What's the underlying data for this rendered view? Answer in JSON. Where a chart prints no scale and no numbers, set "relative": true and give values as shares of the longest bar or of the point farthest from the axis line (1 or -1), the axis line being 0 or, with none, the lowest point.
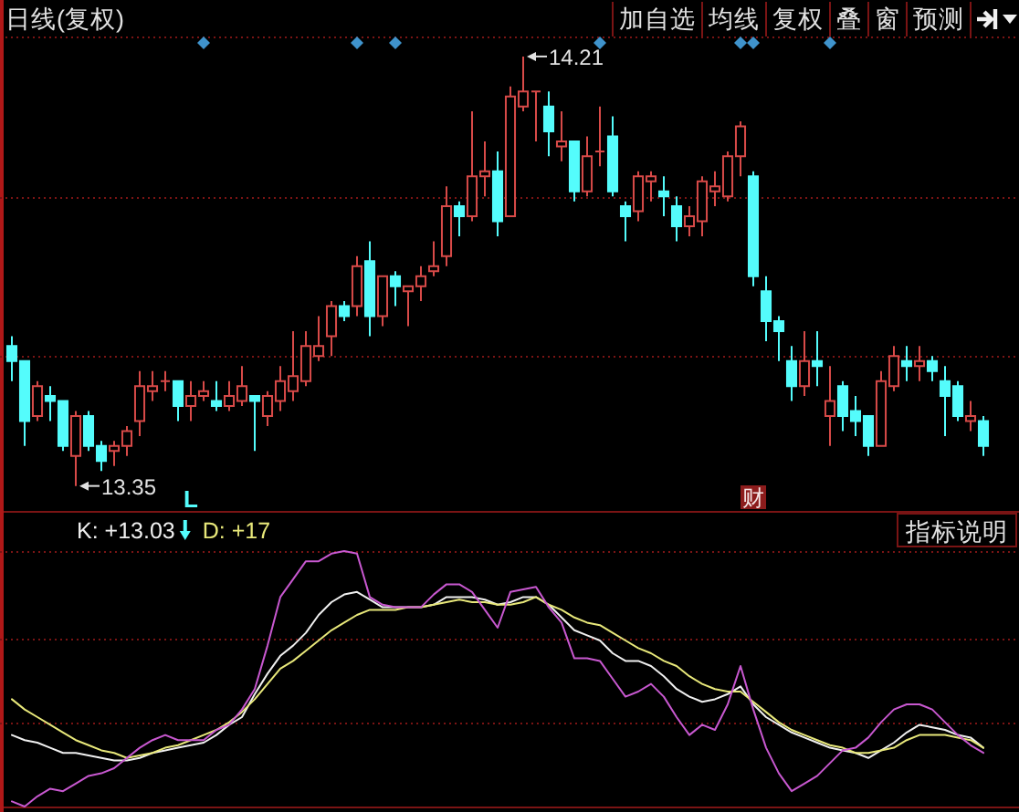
{
  "chart_data": [
    {
      "type": "candlestick",
      "title": "日线(复权)",
      "categories": [
        null,
        null,
        null,
        null,
        null,
        null,
        null,
        null,
        null,
        null,
        null,
        null,
        null,
        null,
        null,
        null,
        null,
        null,
        null,
        null,
        null,
        null,
        null,
        null,
        null,
        null,
        null,
        null,
        null,
        null,
        null,
        null,
        null,
        null,
        null,
        null,
        null,
        null,
        null,
        null,
        null,
        null,
        null,
        null,
        null,
        null,
        null,
        null,
        null,
        null,
        null,
        null,
        null,
        null,
        null,
        null,
        null,
        null,
        null,
        null,
        null,
        null,
        null,
        null,
        null,
        null,
        null,
        null,
        null,
        null,
        null,
        null,
        null,
        null,
        null,
        null,
        null
      ],
      "ohlc": [
        [
          13.63,
          13.65,
          13.56,
          13.6
        ],
        [
          13.6,
          13.6,
          13.43,
          13.48
        ],
        [
          13.49,
          13.56,
          13.48,
          13.55
        ],
        [
          13.53,
          13.55,
          13.48,
          13.52
        ],
        [
          13.52,
          13.52,
          13.42,
          13.43
        ],
        [
          13.41,
          13.5,
          13.35,
          13.49
        ],
        [
          13.49,
          13.5,
          13.42,
          13.43
        ],
        [
          13.43,
          13.44,
          13.38,
          13.4
        ],
        [
          13.42,
          13.44,
          13.39,
          13.43
        ],
        [
          13.43,
          13.47,
          13.41,
          13.46
        ],
        [
          13.48,
          13.58,
          13.45,
          13.55
        ],
        [
          13.54,
          13.58,
          13.52,
          13.55
        ],
        [
          13.56,
          13.58,
          13.54,
          13.56
        ],
        [
          13.56,
          13.56,
          13.48,
          13.51
        ],
        [
          13.51,
          13.56,
          13.48,
          13.53
        ],
        [
          13.53,
          13.56,
          13.52,
          13.54
        ],
        [
          13.52,
          13.56,
          13.5,
          13.51
        ],
        [
          13.51,
          13.56,
          13.5,
          13.53
        ],
        [
          13.52,
          13.59,
          13.51,
          13.55
        ],
        [
          13.53,
          13.53,
          13.42,
          13.52
        ],
        [
          13.49,
          13.54,
          13.47,
          13.53
        ],
        [
          13.52,
          13.59,
          13.5,
          13.56
        ],
        [
          13.54,
          13.66,
          13.52,
          13.57
        ],
        [
          13.56,
          13.66,
          13.55,
          13.63
        ],
        [
          13.61,
          13.69,
          13.6,
          13.63
        ],
        [
          13.65,
          13.72,
          13.61,
          13.71
        ],
        [
          13.71,
          13.72,
          13.68,
          13.69
        ],
        [
          13.71,
          13.81,
          13.69,
          13.79
        ],
        [
          13.8,
          13.84,
          13.65,
          13.69
        ],
        [
          13.69,
          13.77,
          13.67,
          13.77
        ],
        [
          13.77,
          13.78,
          13.71,
          13.75
        ],
        [
          13.74,
          13.75,
          13.67,
          13.75
        ],
        [
          13.75,
          13.79,
          13.72,
          13.77
        ],
        [
          13.78,
          13.84,
          13.77,
          13.79
        ],
        [
          13.81,
          13.95,
          13.79,
          13.91
        ],
        [
          13.91,
          13.92,
          13.85,
          13.89
        ],
        [
          13.89,
          14.1,
          13.88,
          13.97
        ],
        [
          13.97,
          14.04,
          13.93,
          13.98
        ],
        [
          13.98,
          14.02,
          13.85,
          13.88
        ],
        [
          13.89,
          14.15,
          13.89,
          14.13
        ],
        [
          14.11,
          14.21,
          14.1,
          14.14
        ],
        [
          14.14,
          14.14,
          14.04,
          14.14
        ],
        [
          14.11,
          14.14,
          14.01,
          14.06
        ],
        [
          14.03,
          14.1,
          14.0,
          14.04
        ],
        [
          14.04,
          14.04,
          13.92,
          13.94
        ],
        [
          13.94,
          14.05,
          13.93,
          14.01
        ],
        [
          14.02,
          14.11,
          13.99,
          14.02
        ],
        [
          14.05,
          14.09,
          13.93,
          13.94
        ],
        [
          13.91,
          13.92,
          13.84,
          13.89
        ],
        [
          13.9,
          13.98,
          13.88,
          13.97
        ],
        [
          13.96,
          13.98,
          13.92,
          13.97
        ],
        [
          13.94,
          13.97,
          13.89,
          13.93
        ],
        [
          13.91,
          13.93,
          13.84,
          13.87
        ],
        [
          13.87,
          13.91,
          13.85,
          13.89
        ],
        [
          13.88,
          13.97,
          13.85,
          13.96
        ],
        [
          13.94,
          13.98,
          13.91,
          13.95
        ],
        [
          13.93,
          14.02,
          13.92,
          14.01
        ],
        [
          14.01,
          14.08,
          13.97,
          14.07
        ],
        [
          13.97,
          13.98,
          13.75,
          13.77
        ],
        [
          13.74,
          13.77,
          13.64,
          13.68
        ],
        [
          13.68,
          13.69,
          13.6,
          13.66
        ],
        [
          13.6,
          13.63,
          13.52,
          13.55
        ],
        [
          13.55,
          13.66,
          13.53,
          13.6
        ],
        [
          13.6,
          13.66,
          13.55,
          13.59
        ],
        [
          13.49,
          13.59,
          13.43,
          13.52
        ],
        [
          13.55,
          13.56,
          13.46,
          13.49
        ],
        [
          13.5,
          13.53,
          13.45,
          13.48
        ],
        [
          13.49,
          13.49,
          13.41,
          13.43
        ],
        [
          13.43,
          13.58,
          13.43,
          13.56
        ],
        [
          13.55,
          13.63,
          13.54,
          13.61
        ],
        [
          13.6,
          13.63,
          13.56,
          13.59
        ],
        [
          13.59,
          13.63,
          13.56,
          13.6
        ],
        [
          13.6,
          13.61,
          13.56,
          13.58
        ],
        [
          13.56,
          13.59,
          13.45,
          13.53
        ],
        [
          13.55,
          13.56,
          13.48,
          13.49
        ],
        [
          13.48,
          13.52,
          13.46,
          13.49
        ],
        [
          13.48,
          13.49,
          13.41,
          13.43
        ]
      ],
      "colors": [
        "#54fcfc",
        "#54fcfc",
        "#d84a48",
        "#54fcfc",
        "#54fcfc",
        "#d84a48",
        "#54fcfc",
        "#54fcfc",
        "#d84a48",
        "#d84a48",
        "#d84a48",
        "#d84a48",
        "#d84a48",
        "#54fcfc",
        "#d84a48",
        "#d84a48",
        "#54fcfc",
        "#d84a48",
        "#d84a48",
        "#54fcfc",
        "#d84a48",
        "#d84a48",
        "#d84a48",
        "#d84a48",
        "#d84a48",
        "#d84a48",
        "#54fcfc",
        "#d84a48",
        "#54fcfc",
        "#d84a48",
        "#54fcfc",
        "#d84a48",
        "#d84a48",
        "#d84a48",
        "#d84a48",
        "#54fcfc",
        "#d84a48",
        "#d84a48",
        "#54fcfc",
        "#d84a48",
        "#d84a48",
        "#d84a48",
        "#54fcfc",
        "#d84a48",
        "#54fcfc",
        "#d84a48",
        "#d84a48",
        "#54fcfc",
        "#54fcfc",
        "#d84a48",
        "#d84a48",
        "#54fcfc",
        "#54fcfc",
        "#d84a48",
        "#d84a48",
        "#d84a48",
        "#d84a48",
        "#d84a48",
        "#54fcfc",
        "#54fcfc",
        "#54fcfc",
        "#54fcfc",
        "#d84a48",
        "#54fcfc",
        "#d84a48",
        "#54fcfc",
        "#54fcfc",
        "#54fcfc",
        "#d84a48",
        "#d84a48",
        "#54fcfc",
        "#d84a48",
        "#54fcfc",
        "#54fcfc",
        "#54fcfc",
        "#d84a48",
        "#54fcfc"
      ],
      "ylim": [
        13.3,
        14.25
      ],
      "yticks": [
        {
          "value": 13.61,
          "label": null
        },
        {
          "value": 13.93,
          "label": null
        }
      ],
      "grid": "y",
      "annotations": [
        "14.21",
        "13.35",
        "L",
        "财",
        "加自选",
        "均线",
        "复权",
        "叠",
        "窗",
        "预测"
      ]
    },
    {
      "type": "line",
      "relative": true,
      "legend": "top left",
      "categories": [
        null,
        null,
        null,
        null,
        null,
        null,
        null,
        null,
        null,
        null,
        null,
        null,
        null,
        null,
        null,
        null,
        null,
        null,
        null,
        null,
        null,
        null,
        null,
        null,
        null,
        null,
        null,
        null,
        null,
        null,
        null,
        null,
        null,
        null,
        null,
        null,
        null,
        null,
        null,
        null,
        null,
        null,
        null,
        null,
        null,
        null,
        null,
        null,
        null,
        null,
        null,
        null,
        null,
        null,
        null,
        null,
        null,
        null,
        null,
        null,
        null,
        null,
        null,
        null,
        null,
        null,
        null,
        null,
        null,
        null,
        null,
        null,
        null,
        null,
        null,
        null,
        null
      ],
      "series": [
        {
          "name": "K: +13.03",
          "color": "#f0f0f0",
          "values": [
            0.28,
            0.26,
            0.25,
            0.23,
            0.21,
            0.21,
            0.2,
            0.19,
            0.18,
            0.18,
            0.19,
            0.21,
            0.22,
            0.23,
            0.24,
            0.25,
            0.28,
            0.32,
            0.35,
            0.44,
            0.52,
            0.59,
            0.63,
            0.68,
            0.75,
            0.8,
            0.83,
            0.84,
            0.81,
            0.78,
            0.78,
            0.78,
            0.78,
            0.79,
            0.82,
            0.82,
            0.82,
            0.81,
            0.79,
            0.8,
            0.82,
            0.82,
            0.79,
            0.74,
            0.69,
            0.67,
            0.65,
            0.6,
            0.57,
            0.57,
            0.55,
            0.51,
            0.46,
            0.43,
            0.41,
            0.42,
            0.44,
            0.47,
            0.4,
            0.35,
            0.32,
            0.29,
            0.27,
            0.25,
            0.23,
            0.22,
            0.21,
            0.19,
            0.22,
            0.25,
            0.29,
            0.32,
            0.31,
            0.3,
            0.28,
            0.27,
            0.23
          ]
        },
        {
          "name": "D: +17",
          "color": "#e8e87a",
          "values": [
            0.42,
            0.38,
            0.35,
            0.32,
            0.29,
            0.26,
            0.24,
            0.22,
            0.21,
            0.19,
            0.2,
            0.21,
            0.23,
            0.24,
            0.26,
            0.28,
            0.3,
            0.33,
            0.37,
            0.42,
            0.48,
            0.54,
            0.57,
            0.61,
            0.65,
            0.69,
            0.72,
            0.75,
            0.77,
            0.77,
            0.77,
            0.78,
            0.78,
            0.79,
            0.8,
            0.81,
            0.8,
            0.8,
            0.79,
            0.79,
            0.8,
            0.82,
            0.79,
            0.77,
            0.74,
            0.72,
            0.71,
            0.68,
            0.65,
            0.62,
            0.6,
            0.57,
            0.55,
            0.51,
            0.48,
            0.46,
            0.45,
            0.45,
            0.41,
            0.37,
            0.33,
            0.3,
            0.28,
            0.26,
            0.24,
            0.23,
            0.21,
            0.21,
            0.22,
            0.23,
            0.26,
            0.28,
            0.28,
            0.28,
            0.27,
            0.26,
            0.23
          ]
        },
        {
          "color": "#c858d0",
          "values": [
            0.02,
            0,
            0.04,
            0.07,
            0.06,
            0.09,
            0.12,
            0.13,
            0.15,
            0.19,
            0.23,
            0.26,
            0.28,
            0.26,
            0.26,
            0.26,
            0.3,
            0.32,
            0.38,
            0.46,
            0.63,
            0.82,
            0.89,
            0.96,
            0.96,
            0.99,
            1,
            0.99,
            0.82,
            0.79,
            0.78,
            0.78,
            0.78,
            0.83,
            0.87,
            0.87,
            0.84,
            0.77,
            0.7,
            0.84,
            0.85,
            0.86,
            0.78,
            0.72,
            0.58,
            0.58,
            0.57,
            0.5,
            0.43,
            0.45,
            0.48,
            0.43,
            0.35,
            0.28,
            0.32,
            0.3,
            0.4,
            0.55,
            0.38,
            0.23,
            0.13,
            0.06,
            0.09,
            0.12,
            0.17,
            0.22,
            0.23,
            0.27,
            0.33,
            0.38,
            0.4,
            0.4,
            0.38,
            0.33,
            0.28,
            0.24,
            0.21
          ]
        }
      ],
      "ref_lines": [
        {
          "axis": "y",
          "value": 0.33,
          "color": "#7a1414",
          "line_style": "dotted"
        },
        {
          "axis": "y",
          "value": 0.66,
          "color": "#7a1414",
          "line_style": "dotted"
        },
        {
          "axis": "y",
          "value": 1,
          "color": "#7a1414",
          "line_style": "dotted"
        }
      ],
      "annotations": [
        "指标说明"
      ]
    }
  ]
}
